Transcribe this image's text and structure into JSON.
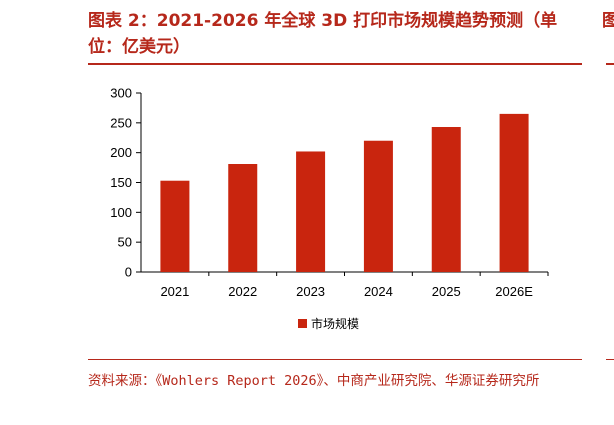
{
  "figure": {
    "title": "图表 2：2021-2026 年全球 3D 打印市场规模趋势预测（单位：亿美元）",
    "source": "资料来源：《Wohlers Report 2026》、中商产业研究院、华源证券研究所",
    "accent_color": "#b6281b"
  },
  "chart_data": {
    "type": "bar",
    "categories": [
      "2021",
      "2022",
      "2023",
      "2024",
      "2025",
      "2026E"
    ],
    "series": [
      {
        "name": "市场规模",
        "values": [
          153,
          181,
          202,
          220,
          243,
          265
        ],
        "color": "#c9250e"
      }
    ],
    "ylim": [
      0,
      300
    ],
    "yticks": [
      0,
      50,
      100,
      150,
      200,
      250,
      300
    ],
    "legend_position": "bottom-center",
    "grid": false
  }
}
